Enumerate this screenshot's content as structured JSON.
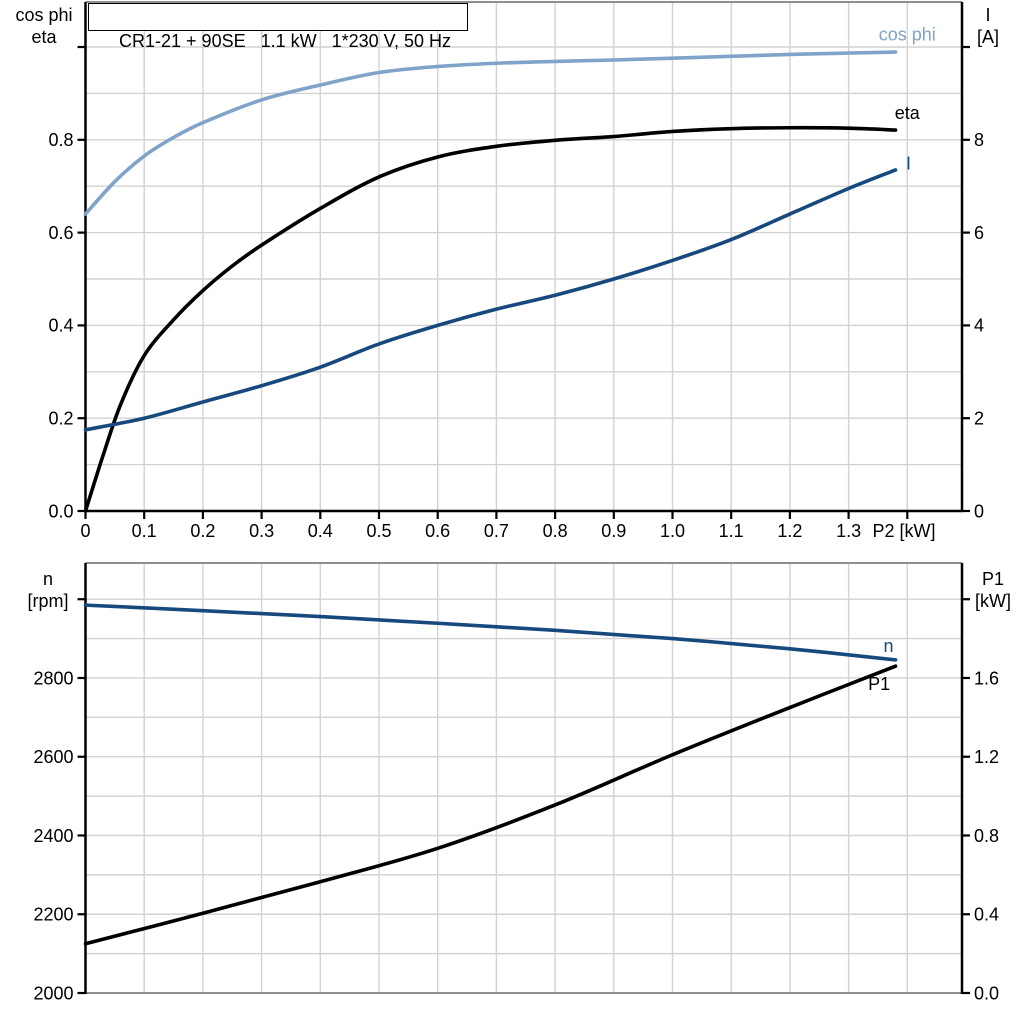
{
  "title_box": {
    "text": "CR1-21 + 90SE   1.1 kW   1*230 V, 50 Hz"
  },
  "colors": {
    "cos_phi": "#7fa3c9",
    "eta": "#000000",
    "current": "#17497e",
    "speed": "#17497e",
    "p1": "#000000",
    "grid": "#d2d2d2",
    "axis": "#000000",
    "border": "#8f8f8f",
    "background": "#ffffff"
  },
  "chart_data": [
    {
      "type": "line",
      "name": "motor-power-factor-efficiency-current-chart",
      "x_axis": {
        "label": "P2 [kW]",
        "min": 0,
        "max": 1.4932,
        "minor_step": 0.1,
        "ticks": [
          {
            "v": 0,
            "label": "0"
          },
          {
            "v": 0.1,
            "label": "0.1"
          },
          {
            "v": 0.2,
            "label": "0.2"
          },
          {
            "v": 0.3,
            "label": "0.3"
          },
          {
            "v": 0.4,
            "label": "0.4"
          },
          {
            "v": 0.5,
            "label": "0.5"
          },
          {
            "v": 0.6,
            "label": "0.6"
          },
          {
            "v": 0.7,
            "label": "0.7"
          },
          {
            "v": 0.8,
            "label": "0.8"
          },
          {
            "v": 0.9,
            "label": "0.9"
          },
          {
            "v": 1.0,
            "label": "1.0"
          },
          {
            "v": 1.1,
            "label": "1.1"
          },
          {
            "v": 1.2,
            "label": "1.2"
          },
          {
            "v": 1.3,
            "label": "1.3"
          },
          {
            "v": 1.4,
            "label": ""
          }
        ]
      },
      "left_axis": {
        "label_lines": [
          "cos phi",
          "eta"
        ],
        "min": 0,
        "max": 1.097,
        "minor_step": 0.1,
        "ticks": [
          {
            "v": 0,
            "label": "0.0"
          },
          {
            "v": 0.2,
            "label": "0.2"
          },
          {
            "v": 0.4,
            "label": "0.4"
          },
          {
            "v": 0.6,
            "label": "0.6"
          },
          {
            "v": 0.8,
            "label": "0.8"
          },
          {
            "v": 1.0,
            "label": ""
          }
        ]
      },
      "right_axis": {
        "label_lines": [
          "I",
          "[A]"
        ],
        "min": 0,
        "max": 10.97,
        "ticks": [
          {
            "v": 0,
            "label": "0"
          },
          {
            "v": 2,
            "label": "2"
          },
          {
            "v": 4,
            "label": "4"
          },
          {
            "v": 6,
            "label": "6"
          },
          {
            "v": 8,
            "label": "8"
          },
          {
            "v": 10,
            "label": ""
          }
        ]
      },
      "series": [
        {
          "id": "cos-phi",
          "name": "cos phi",
          "axis": "left",
          "color": "#7fa3c9",
          "label": "cos phi",
          "label_at": [
            1.4,
            1.028
          ],
          "points": [
            [
              0,
              0.64
            ],
            [
              0.05,
              0.71
            ],
            [
              0.1,
              0.765
            ],
            [
              0.15,
              0.805
            ],
            [
              0.2,
              0.837
            ],
            [
              0.3,
              0.886
            ],
            [
              0.4,
              0.918
            ],
            [
              0.5,
              0.945
            ],
            [
              0.6,
              0.958
            ],
            [
              0.7,
              0.965
            ],
            [
              0.8,
              0.969
            ],
            [
              0.9,
              0.972
            ],
            [
              1.0,
              0.976
            ],
            [
              1.1,
              0.98
            ],
            [
              1.2,
              0.984
            ],
            [
              1.3,
              0.987
            ],
            [
              1.38,
              0.989
            ]
          ]
        },
        {
          "id": "eta",
          "name": "eta",
          "axis": "left",
          "color": "#000000",
          "label": "eta",
          "label_at": [
            1.4,
            0.858
          ],
          "points": [
            [
              0,
              0
            ],
            [
              0.03,
              0.12
            ],
            [
              0.06,
              0.23
            ],
            [
              0.1,
              0.335
            ],
            [
              0.15,
              0.412
            ],
            [
              0.2,
              0.475
            ],
            [
              0.25,
              0.528
            ],
            [
              0.3,
              0.573
            ],
            [
              0.4,
              0.652
            ],
            [
              0.5,
              0.72
            ],
            [
              0.6,
              0.763
            ],
            [
              0.7,
              0.786
            ],
            [
              0.8,
              0.799
            ],
            [
              0.9,
              0.807
            ],
            [
              1.0,
              0.818
            ],
            [
              1.1,
              0.824
            ],
            [
              1.2,
              0.826
            ],
            [
              1.3,
              0.825
            ],
            [
              1.38,
              0.821
            ]
          ]
        },
        {
          "id": "current",
          "name": "I",
          "axis": "right",
          "color": "#17497e",
          "label": "I",
          "label_at": [
            1.402,
            7.5
          ],
          "points": [
            [
              0,
              1.75
            ],
            [
              0.1,
              2.0
            ],
            [
              0.2,
              2.35
            ],
            [
              0.3,
              2.7
            ],
            [
              0.4,
              3.1
            ],
            [
              0.5,
              3.6
            ],
            [
              0.6,
              4.0
            ],
            [
              0.7,
              4.35
            ],
            [
              0.8,
              4.65
            ],
            [
              0.9,
              5.0
            ],
            [
              1.0,
              5.4
            ],
            [
              1.1,
              5.85
            ],
            [
              1.2,
              6.4
            ],
            [
              1.3,
              6.95
            ],
            [
              1.38,
              7.35
            ]
          ]
        }
      ]
    },
    {
      "type": "line",
      "name": "motor-speed-input-power-chart",
      "x_axis": {
        "label": "",
        "min": 0,
        "max": 1.4932,
        "minor_step": 0.1,
        "ticks": []
      },
      "left_axis": {
        "label_lines": [
          "n",
          "[rpm]"
        ],
        "min": 2000,
        "max": 3092,
        "minor_step": 100,
        "ticks": [
          {
            "v": 2000,
            "label": "2000"
          },
          {
            "v": 2200,
            "label": "2200"
          },
          {
            "v": 2400,
            "label": "2400"
          },
          {
            "v": 2600,
            "label": "2600"
          },
          {
            "v": 2800,
            "label": "2800"
          },
          {
            "v": 3000,
            "label": ""
          }
        ]
      },
      "right_axis": {
        "label_lines": [
          "P1",
          "[kW]"
        ],
        "min": 0,
        "max": 2.184,
        "ticks": [
          {
            "v": 0,
            "label": "0.0"
          },
          {
            "v": 0.4,
            "label": "0.4"
          },
          {
            "v": 0.8,
            "label": "0.8"
          },
          {
            "v": 1.2,
            "label": "1.2"
          },
          {
            "v": 1.6,
            "label": "1.6"
          },
          {
            "v": 2.0,
            "label": ""
          }
        ]
      },
      "series": [
        {
          "id": "speed",
          "name": "n",
          "axis": "left",
          "color": "#17497e",
          "label": "n",
          "label_at": [
            1.368,
            2882
          ],
          "points": [
            [
              0,
              2985
            ],
            [
              0.2,
              2971
            ],
            [
              0.4,
              2956
            ],
            [
              0.6,
              2939
            ],
            [
              0.8,
              2921
            ],
            [
              1.0,
              2900
            ],
            [
              1.2,
              2874
            ],
            [
              1.38,
              2846
            ]
          ]
        },
        {
          "id": "p1",
          "name": "P1",
          "axis": "right",
          "color": "#000000",
          "label": "P1",
          "label_at": [
            1.352,
            1.57
          ],
          "points": [
            [
              0,
              0.25
            ],
            [
              0.2,
              0.405
            ],
            [
              0.4,
              0.565
            ],
            [
              0.6,
              0.735
            ],
            [
              0.8,
              0.955
            ],
            [
              1.0,
              1.21
            ],
            [
              1.2,
              1.45
            ],
            [
              1.38,
              1.66
            ]
          ]
        }
      ]
    }
  ]
}
